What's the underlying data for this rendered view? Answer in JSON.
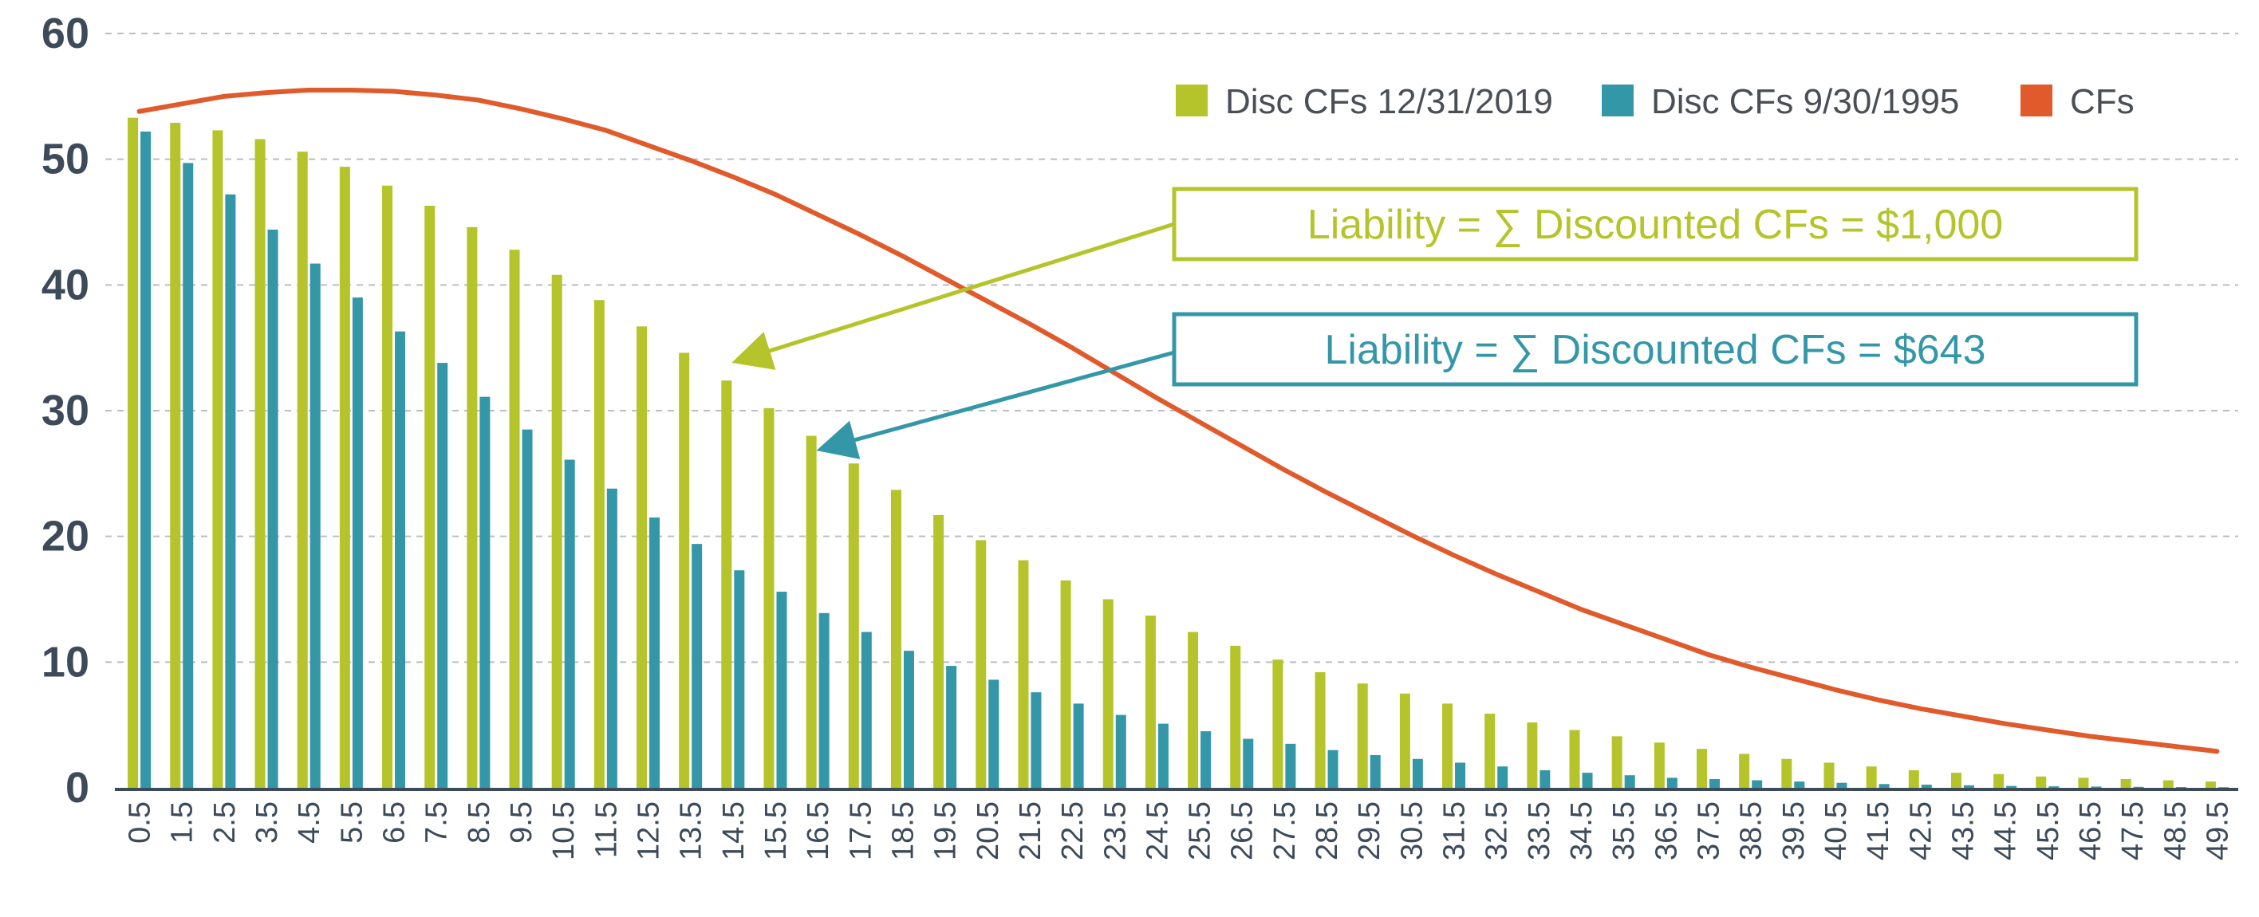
{
  "chart_data": {
    "type": "bar",
    "ylim": [
      0,
      60
    ],
    "yticks": [
      0,
      10,
      20,
      30,
      40,
      50,
      60
    ],
    "grid": true,
    "legend_position": "top-right",
    "categories": [
      "0.5",
      "1.5",
      "2.5",
      "3.5",
      "4.5",
      "5.5",
      "6.5",
      "7.5",
      "8.5",
      "9.5",
      "10.5",
      "11.5",
      "12.5",
      "13.5",
      "14.5",
      "15.5",
      "16.5",
      "17.5",
      "18.5",
      "19.5",
      "20.5",
      "21.5",
      "22.5",
      "23.5",
      "24.5",
      "25.5",
      "26.5",
      "27.5",
      "28.5",
      "29.5",
      "30.5",
      "31.5",
      "32.5",
      "33.5",
      "34.5",
      "35.5",
      "36.5",
      "37.5",
      "38.5",
      "39.5",
      "40.5",
      "41.5",
      "42.5",
      "43.5",
      "44.5",
      "45.5",
      "46.5",
      "47.5",
      "48.5",
      "49.5"
    ],
    "series": [
      {
        "name": "Disc CFs 12/31/2019",
        "kind": "bar",
        "color": "#b5c42a",
        "values": [
          53.3,
          52.9,
          52.3,
          51.6,
          50.6,
          49.4,
          47.9,
          46.3,
          44.6,
          42.8,
          40.8,
          38.8,
          36.7,
          34.6,
          32.4,
          30.2,
          28.0,
          25.8,
          23.7,
          21.7,
          19.7,
          18.1,
          16.5,
          15.0,
          13.7,
          12.4,
          11.3,
          10.2,
          9.2,
          8.3,
          7.5,
          6.7,
          5.9,
          5.2,
          4.6,
          4.1,
          3.6,
          3.1,
          2.7,
          2.3,
          2.0,
          1.7,
          1.4,
          1.2,
          1.1,
          0.9,
          0.8,
          0.7,
          0.6,
          0.5
        ]
      },
      {
        "name": "Disc CFs 9/30/1995",
        "kind": "bar",
        "color": "#3497a8",
        "values": [
          52.2,
          49.7,
          47.2,
          44.4,
          41.7,
          39.0,
          36.3,
          33.8,
          31.1,
          28.5,
          26.1,
          23.8,
          21.5,
          19.4,
          17.3,
          15.6,
          13.9,
          12.4,
          10.9,
          9.7,
          8.6,
          7.6,
          6.7,
          5.8,
          5.1,
          4.5,
          3.9,
          3.5,
          3.0,
          2.6,
          2.3,
          2.0,
          1.7,
          1.4,
          1.2,
          1.0,
          0.8,
          0.7,
          0.6,
          0.5,
          0.4,
          0.3,
          0.25,
          0.2,
          0.15,
          0.12,
          0.1,
          0.08,
          0.06,
          0.05
        ]
      },
      {
        "name": "CFs",
        "kind": "line",
        "color": "#e05a2b",
        "values": [
          53.8,
          54.4,
          55.0,
          55.3,
          55.5,
          55.5,
          55.4,
          55.1,
          54.7,
          54.0,
          53.2,
          52.3,
          51.1,
          49.9,
          48.6,
          47.2,
          45.6,
          44.0,
          42.3,
          40.5,
          38.7,
          36.9,
          35.0,
          33.0,
          31.0,
          29.1,
          27.2,
          25.3,
          23.5,
          21.8,
          20.1,
          18.5,
          17.0,
          15.6,
          14.2,
          13.0,
          11.8,
          10.6,
          9.6,
          8.7,
          7.8,
          7.0,
          6.3,
          5.7,
          5.1,
          4.6,
          4.1,
          3.7,
          3.3,
          2.9
        ]
      }
    ],
    "annotations": [
      {
        "text": "Liability = ∑ Discounted CFs = $1,000",
        "color": "#b5c42a",
        "points_to": {
          "category": "14.5",
          "value": 34
        }
      },
      {
        "text": "Liability = ∑ Discounted CFs = $643",
        "color": "#3497a8",
        "points_to": {
          "category": "16.5",
          "value": 27
        }
      }
    ]
  }
}
